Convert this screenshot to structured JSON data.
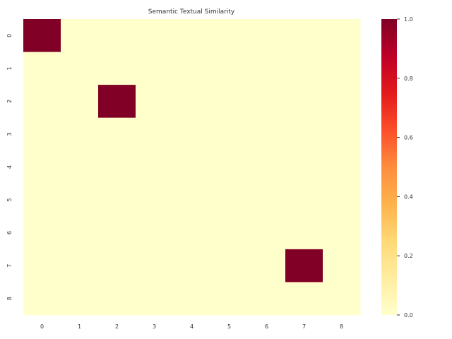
{
  "chart_data": {
    "type": "heatmap",
    "title": "Semantic Textual Similarity",
    "xlabel": "",
    "ylabel": "",
    "x_categories": [
      "0",
      "1",
      "2",
      "3",
      "4",
      "5",
      "6",
      "7",
      "8"
    ],
    "y_categories": [
      "0",
      "1",
      "2",
      "3",
      "4",
      "5",
      "6",
      "7",
      "8"
    ],
    "values": [
      [
        1,
        0,
        0,
        0,
        0,
        0,
        0,
        0,
        0
      ],
      [
        0,
        0,
        0,
        0,
        0,
        0,
        0,
        0,
        0
      ],
      [
        0,
        0,
        1,
        0,
        0,
        0,
        0,
        0,
        0
      ],
      [
        0,
        0,
        0,
        0,
        0,
        0,
        0,
        0,
        0
      ],
      [
        0,
        0,
        0,
        0,
        0,
        0,
        0,
        0,
        0
      ],
      [
        0,
        0,
        0,
        0,
        0,
        0,
        0,
        0,
        0
      ],
      [
        0,
        0,
        0,
        0,
        0,
        0,
        0,
        0,
        0
      ],
      [
        0,
        0,
        0,
        0,
        0,
        0,
        0,
        1,
        0
      ],
      [
        0,
        0,
        0,
        0,
        0,
        0,
        0,
        0,
        0
      ]
    ],
    "colorbar": {
      "colormap": "YlOrRd",
      "range": [
        0.0,
        1.0
      ],
      "ticks": [
        "0.0",
        "0.2",
        "0.4",
        "0.6",
        "0.8",
        "1.0"
      ],
      "gradient": [
        "#ffffcc",
        "#ffeda0",
        "#fed976",
        "#feb24c",
        "#fd8d3c",
        "#fc4e2a",
        "#e31a1c",
        "#bd0026",
        "#800026"
      ]
    },
    "grid": false,
    "legend": "colorbar-right"
  }
}
